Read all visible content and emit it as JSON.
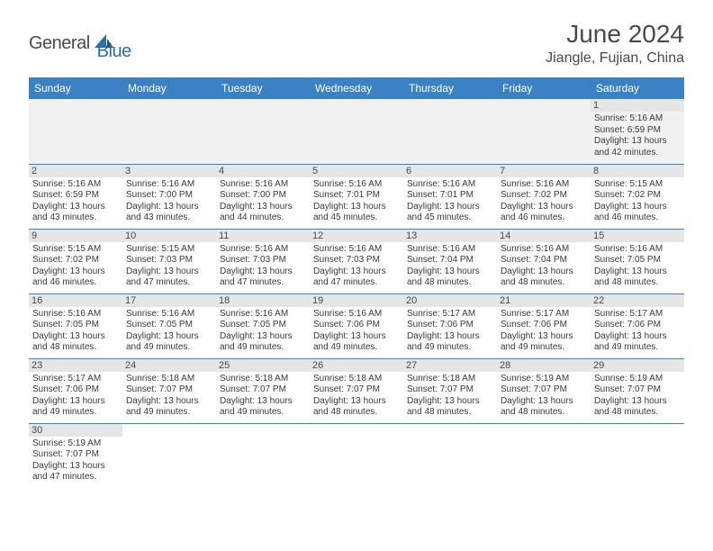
{
  "brand": {
    "part1": "General",
    "part2": "Blue"
  },
  "title": "June 2024",
  "location": "Jiangle, Fujian, China",
  "colors": {
    "header_bg": "#3b82c4",
    "header_text": "#ffffff",
    "daynum_bg": "#e6e6e6",
    "border": "#3b82c4",
    "logo_gray": "#4a4a4a",
    "logo_blue": "#2b6fb0"
  },
  "weekdays": [
    "Sunday",
    "Monday",
    "Tuesday",
    "Wednesday",
    "Thursday",
    "Friday",
    "Saturday"
  ],
  "labels": {
    "sunrise": "Sunrise:",
    "sunset": "Sunset:",
    "daylight": "Daylight:"
  },
  "weeks": [
    [
      null,
      null,
      null,
      null,
      null,
      null,
      {
        "d": "1",
        "sr": "5:16 AM",
        "ss": "6:59 PM",
        "dl": "13 hours and 42 minutes."
      }
    ],
    [
      {
        "d": "2",
        "sr": "5:16 AM",
        "ss": "6:59 PM",
        "dl": "13 hours and 43 minutes."
      },
      {
        "d": "3",
        "sr": "5:16 AM",
        "ss": "7:00 PM",
        "dl": "13 hours and 43 minutes."
      },
      {
        "d": "4",
        "sr": "5:16 AM",
        "ss": "7:00 PM",
        "dl": "13 hours and 44 minutes."
      },
      {
        "d": "5",
        "sr": "5:16 AM",
        "ss": "7:01 PM",
        "dl": "13 hours and 45 minutes."
      },
      {
        "d": "6",
        "sr": "5:16 AM",
        "ss": "7:01 PM",
        "dl": "13 hours and 45 minutes."
      },
      {
        "d": "7",
        "sr": "5:16 AM",
        "ss": "7:02 PM",
        "dl": "13 hours and 46 minutes."
      },
      {
        "d": "8",
        "sr": "5:15 AM",
        "ss": "7:02 PM",
        "dl": "13 hours and 46 minutes."
      }
    ],
    [
      {
        "d": "9",
        "sr": "5:15 AM",
        "ss": "7:02 PM",
        "dl": "13 hours and 46 minutes."
      },
      {
        "d": "10",
        "sr": "5:15 AM",
        "ss": "7:03 PM",
        "dl": "13 hours and 47 minutes."
      },
      {
        "d": "11",
        "sr": "5:16 AM",
        "ss": "7:03 PM",
        "dl": "13 hours and 47 minutes."
      },
      {
        "d": "12",
        "sr": "5:16 AM",
        "ss": "7:03 PM",
        "dl": "13 hours and 47 minutes."
      },
      {
        "d": "13",
        "sr": "5:16 AM",
        "ss": "7:04 PM",
        "dl": "13 hours and 48 minutes."
      },
      {
        "d": "14",
        "sr": "5:16 AM",
        "ss": "7:04 PM",
        "dl": "13 hours and 48 minutes."
      },
      {
        "d": "15",
        "sr": "5:16 AM",
        "ss": "7:05 PM",
        "dl": "13 hours and 48 minutes."
      }
    ],
    [
      {
        "d": "16",
        "sr": "5:16 AM",
        "ss": "7:05 PM",
        "dl": "13 hours and 48 minutes."
      },
      {
        "d": "17",
        "sr": "5:16 AM",
        "ss": "7:05 PM",
        "dl": "13 hours and 49 minutes."
      },
      {
        "d": "18",
        "sr": "5:16 AM",
        "ss": "7:05 PM",
        "dl": "13 hours and 49 minutes."
      },
      {
        "d": "19",
        "sr": "5:16 AM",
        "ss": "7:06 PM",
        "dl": "13 hours and 49 minutes."
      },
      {
        "d": "20",
        "sr": "5:17 AM",
        "ss": "7:06 PM",
        "dl": "13 hours and 49 minutes."
      },
      {
        "d": "21",
        "sr": "5:17 AM",
        "ss": "7:06 PM",
        "dl": "13 hours and 49 minutes."
      },
      {
        "d": "22",
        "sr": "5:17 AM",
        "ss": "7:06 PM",
        "dl": "13 hours and 49 minutes."
      }
    ],
    [
      {
        "d": "23",
        "sr": "5:17 AM",
        "ss": "7:06 PM",
        "dl": "13 hours and 49 minutes."
      },
      {
        "d": "24",
        "sr": "5:18 AM",
        "ss": "7:07 PM",
        "dl": "13 hours and 49 minutes."
      },
      {
        "d": "25",
        "sr": "5:18 AM",
        "ss": "7:07 PM",
        "dl": "13 hours and 49 minutes."
      },
      {
        "d": "26",
        "sr": "5:18 AM",
        "ss": "7:07 PM",
        "dl": "13 hours and 48 minutes."
      },
      {
        "d": "27",
        "sr": "5:18 AM",
        "ss": "7:07 PM",
        "dl": "13 hours and 48 minutes."
      },
      {
        "d": "28",
        "sr": "5:19 AM",
        "ss": "7:07 PM",
        "dl": "13 hours and 48 minutes."
      },
      {
        "d": "29",
        "sr": "5:19 AM",
        "ss": "7:07 PM",
        "dl": "13 hours and 48 minutes."
      }
    ],
    [
      {
        "d": "30",
        "sr": "5:19 AM",
        "ss": "7:07 PM",
        "dl": "13 hours and 47 minutes."
      },
      null,
      null,
      null,
      null,
      null,
      null
    ]
  ]
}
